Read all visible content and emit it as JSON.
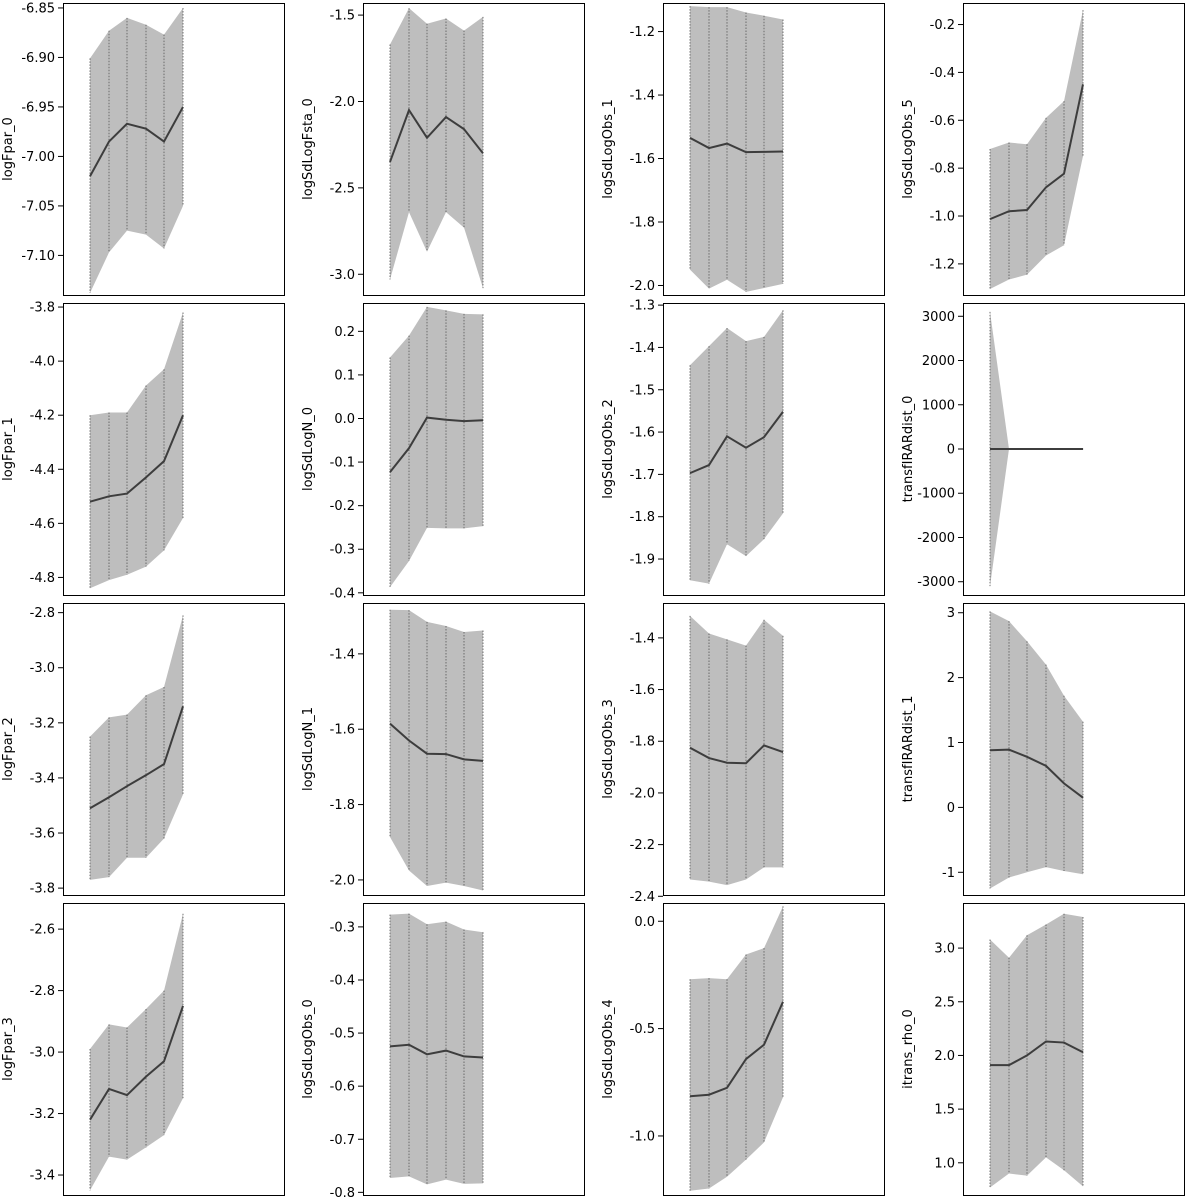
{
  "figure": {
    "layout": "4x4 grid of small multiples"
  },
  "style": {
    "band_fill": "#bebebe",
    "band_stroke": "#555555",
    "line_color": "#3d3d3d",
    "frame_color": "#000000"
  },
  "chart_data": [
    {
      "type": "area",
      "ylabel": "logFpar_0",
      "ylim": [
        -7.14,
        -6.845
      ],
      "yticks": [
        -7.1,
        -7.05,
        -7.0,
        -6.95,
        -6.9,
        -6.85
      ],
      "ytick_labels": [
        "-7.10",
        "-7.05",
        "-7.00",
        "-6.95",
        "-6.90",
        "-6.85"
      ],
      "mean": [
        -7.02,
        -6.985,
        -6.967,
        -6.972,
        -6.985,
        -6.95
      ],
      "lower": [
        -7.138,
        -7.097,
        -7.075,
        -7.079,
        -7.093,
        -7.05
      ],
      "upper": [
        -6.901,
        -6.873,
        -6.86,
        -6.867,
        -6.877,
        -6.85
      ]
    },
    {
      "type": "area",
      "ylabel": "logSdLogFsta_0",
      "ylim": [
        -3.12,
        -1.43
      ],
      "yticks": [
        -3.0,
        -2.5,
        -2.0,
        -1.5
      ],
      "ytick_labels": [
        "-3.0",
        "-2.5",
        "-2.0",
        "-1.5"
      ],
      "mean": [
        -2.35,
        -2.05,
        -2.21,
        -2.09,
        -2.16,
        -2.3
      ],
      "lower": [
        -3.03,
        -2.64,
        -2.87,
        -2.64,
        -2.73,
        -3.08
      ],
      "upper": [
        -1.67,
        -1.46,
        -1.55,
        -1.52,
        -1.59,
        -1.51
      ]
    },
    {
      "type": "area",
      "ylabel": "logSdLogObs_1",
      "ylim": [
        -2.03,
        -1.11
      ],
      "yticks": [
        -2.0,
        -1.8,
        -1.6,
        -1.4,
        -1.2
      ],
      "ytick_labels": [
        "-2.0",
        "-1.8",
        "-1.6",
        "-1.4",
        "-1.2"
      ],
      "mean": [
        -1.535,
        -1.567,
        -1.553,
        -1.58,
        -1.579,
        -1.578
      ],
      "lower": [
        -1.95,
        -2.01,
        -1.982,
        -2.02,
        -2.008,
        -1.995
      ],
      "upper": [
        -1.12,
        -1.123,
        -1.123,
        -1.14,
        -1.15,
        -1.162
      ]
    },
    {
      "type": "area",
      "ylabel": "logSdLogObs_5",
      "ylim": [
        -1.33,
        -0.11
      ],
      "yticks": [
        -1.2,
        -1.0,
        -0.8,
        -0.6,
        -0.4,
        -0.2
      ],
      "ytick_labels": [
        "-1.2",
        "-1.0",
        "-0.8",
        "-0.6",
        "-0.4",
        "-0.2"
      ],
      "mean": [
        -1.013,
        -0.98,
        -0.975,
        -0.88,
        -0.823,
        -0.45
      ],
      "lower": [
        -1.305,
        -1.265,
        -1.245,
        -1.165,
        -1.122,
        -0.75
      ],
      "upper": [
        -0.72,
        -0.693,
        -0.7,
        -0.59,
        -0.52,
        -0.14
      ]
    },
    {
      "type": "area",
      "ylabel": "logFpar_1",
      "ylim": [
        -4.865,
        -3.785
      ],
      "yticks": [
        -4.8,
        -4.6,
        -4.4,
        -4.2,
        -4.0,
        -3.8
      ],
      "ytick_labels": [
        "-4.8",
        "-4.6",
        "-4.4",
        "-4.2",
        "-4.0",
        "-3.8"
      ],
      "mean": [
        -4.52,
        -4.5,
        -4.49,
        -4.43,
        -4.37,
        -4.2
      ],
      "lower": [
        -4.84,
        -4.81,
        -4.79,
        -4.76,
        -4.7,
        -4.58
      ],
      "upper": [
        -4.2,
        -4.19,
        -4.19,
        -4.09,
        -4.03,
        -3.82
      ]
    },
    {
      "type": "area",
      "ylabel": "logSdLogN_0",
      "ylim": [
        -0.405,
        0.265
      ],
      "yticks": [
        -0.4,
        -0.3,
        -0.2,
        -0.1,
        0.0,
        0.1,
        0.2
      ],
      "ytick_labels": [
        "-0.4",
        "-0.3",
        "-0.2",
        "-0.1",
        "0.0",
        "0.1",
        "0.2"
      ],
      "mean": [
        -0.123,
        -0.068,
        0.002,
        -0.003,
        -0.006,
        -0.004
      ],
      "lower": [
        -0.387,
        -0.327,
        -0.251,
        -0.252,
        -0.252,
        -0.247
      ],
      "upper": [
        0.14,
        0.19,
        0.256,
        0.248,
        0.24,
        0.239
      ]
    },
    {
      "type": "area",
      "ylabel": "logSdLogObs_2",
      "ylim": [
        -1.985,
        -1.295
      ],
      "yticks": [
        -1.9,
        -1.8,
        -1.7,
        -1.6,
        -1.5,
        -1.4,
        -1.3
      ],
      "ytick_labels": [
        "-1.9",
        "-1.8",
        "-1.7",
        "-1.6",
        "-1.5",
        "-1.4",
        "-1.3"
      ],
      "mean": [
        -1.697,
        -1.678,
        -1.61,
        -1.637,
        -1.612,
        -1.552
      ],
      "lower": [
        -1.95,
        -1.958,
        -1.865,
        -1.893,
        -1.853,
        -1.792
      ],
      "upper": [
        -1.442,
        -1.397,
        -1.354,
        -1.385,
        -1.375,
        -1.312
      ]
    },
    {
      "type": "area",
      "ylabel": "transfIRARdist_0",
      "ylim": [
        -3300,
        3300
      ],
      "yticks": [
        -3000,
        -2000,
        -1000,
        0,
        1000,
        2000,
        3000
      ],
      "ytick_labels": [
        "-3000",
        "-2000",
        "-1000",
        "0",
        "1000",
        "2000",
        "3000"
      ],
      "mean": [
        0,
        0,
        0,
        0,
        0,
        0
      ],
      "lower": [
        -3100,
        0,
        0,
        0,
        0,
        0
      ],
      "upper": [
        3100,
        0,
        0,
        0,
        0,
        0
      ]
    },
    {
      "type": "area",
      "ylabel": "logFpar_2",
      "ylim": [
        -3.825,
        -2.765
      ],
      "yticks": [
        -3.8,
        -3.6,
        -3.4,
        -3.2,
        -3.0,
        -2.8
      ],
      "ytick_labels": [
        "-3.8",
        "-3.6",
        "-3.4",
        "-3.2",
        "-3.0",
        "-2.8"
      ],
      "mean": [
        -3.51,
        -3.47,
        -3.43,
        -3.39,
        -3.35,
        -3.14
      ],
      "lower": [
        -3.77,
        -3.76,
        -3.69,
        -3.69,
        -3.62,
        -3.46
      ],
      "upper": [
        -3.25,
        -3.18,
        -3.17,
        -3.1,
        -3.07,
        -2.81
      ]
    },
    {
      "type": "area",
      "ylabel": "logSdLogN_1",
      "ylim": [
        -2.04,
        -1.265
      ],
      "yticks": [
        -2.0,
        -1.8,
        -1.6,
        -1.4
      ],
      "ytick_labels": [
        "-2.0",
        "-1.8",
        "-1.6",
        "-1.4"
      ],
      "mean": [
        -1.585,
        -1.63,
        -1.665,
        -1.666,
        -1.68,
        -1.684
      ],
      "lower": [
        -1.886,
        -1.975,
        -2.016,
        -2.007,
        -2.016,
        -2.028
      ],
      "upper": [
        -1.283,
        -1.284,
        -1.315,
        -1.326,
        -1.342,
        -1.338
      ]
    },
    {
      "type": "area",
      "ylabel": "logSdLogObs_3",
      "ylim": [
        -2.395,
        -1.265
      ],
      "yticks": [
        -2.4,
        -2.2,
        -2.0,
        -1.8,
        -1.6,
        -1.4
      ],
      "ytick_labels": [
        "-2.4",
        "-2.2",
        "-2.0",
        "-1.8",
        "-1.6",
        "-1.4"
      ],
      "mean": [
        -1.825,
        -1.865,
        -1.883,
        -1.885,
        -1.816,
        -1.842
      ],
      "lower": [
        -2.335,
        -2.343,
        -2.357,
        -2.335,
        -2.288,
        -2.288
      ],
      "upper": [
        -1.315,
        -1.383,
        -1.406,
        -1.43,
        -1.33,
        -1.392
      ]
    },
    {
      "type": "area",
      "ylabel": "transfIRARdist_1",
      "ylim": [
        -1.35,
        3.15
      ],
      "yticks": [
        -1,
        0,
        1,
        2,
        3
      ],
      "ytick_labels": [
        "-1",
        "0",
        "1",
        "2",
        "3"
      ],
      "mean": [
        0.88,
        0.89,
        0.78,
        0.64,
        0.37,
        0.15
      ],
      "lower": [
        -1.25,
        -1.08,
        -1.0,
        -0.92,
        -0.98,
        -1.03
      ],
      "upper": [
        3.02,
        2.87,
        2.56,
        2.2,
        1.72,
        1.32
      ]
    },
    {
      "type": "area",
      "ylabel": "logFpar_3",
      "ylim": [
        -3.465,
        -2.515
      ],
      "yticks": [
        -3.4,
        -3.2,
        -3.0,
        -2.8,
        -2.6
      ],
      "ytick_labels": [
        "-3.4",
        "-3.2",
        "-3.0",
        "-2.8",
        "-2.6"
      ],
      "mean": [
        -3.22,
        -3.12,
        -3.14,
        -3.08,
        -3.03,
        -2.85
      ],
      "lower": [
        -3.45,
        -3.34,
        -3.35,
        -3.31,
        -3.27,
        -3.15
      ],
      "upper": [
        -2.99,
        -2.91,
        -2.92,
        -2.86,
        -2.8,
        -2.55
      ]
    },
    {
      "type": "area",
      "ylabel": "logSdLogObs_0",
      "ylim": [
        -0.805,
        -0.255
      ],
      "yticks": [
        -0.8,
        -0.7,
        -0.6,
        -0.5,
        -0.4,
        -0.3
      ],
      "ytick_labels": [
        "-0.8",
        "-0.7",
        "-0.6",
        "-0.5",
        "-0.4",
        "-0.3"
      ],
      "mean": [
        -0.525,
        -0.522,
        -0.54,
        -0.533,
        -0.544,
        -0.546
      ],
      "lower": [
        -0.773,
        -0.77,
        -0.785,
        -0.776,
        -0.784,
        -0.783
      ],
      "upper": [
        -0.277,
        -0.275,
        -0.295,
        -0.29,
        -0.305,
        -0.31
      ]
    },
    {
      "type": "area",
      "ylabel": "logSdLogObs_4",
      "ylim": [
        -1.275,
        0.085
      ],
      "yticks": [
        -1.0,
        -0.5,
        0.0
      ],
      "ytick_labels": [
        "-1.0",
        "-0.5",
        "0.0"
      ],
      "mean": [
        -0.815,
        -0.808,
        -0.776,
        -0.642,
        -0.575,
        -0.375
      ],
      "lower": [
        -1.255,
        -1.245,
        -1.19,
        -1.11,
        -1.03,
        -0.82
      ],
      "upper": [
        -0.27,
        -0.265,
        -0.27,
        -0.155,
        -0.125,
        0.07
      ]
    },
    {
      "type": "area",
      "ylabel": "itrans_rho_0",
      "ylim": [
        0.7,
        3.42
      ],
      "yticks": [
        1.0,
        1.5,
        2.0,
        2.5,
        3.0
      ],
      "ytick_labels": [
        "1.0",
        "1.5",
        "2.0",
        "2.5",
        "3.0"
      ],
      "mean": [
        1.91,
        1.91,
        2.0,
        2.13,
        2.12,
        2.03
      ],
      "lower": [
        0.77,
        0.9,
        0.88,
        1.05,
        0.93,
        0.78
      ],
      "upper": [
        3.08,
        2.91,
        3.12,
        3.22,
        3.32,
        3.29
      ]
    }
  ]
}
